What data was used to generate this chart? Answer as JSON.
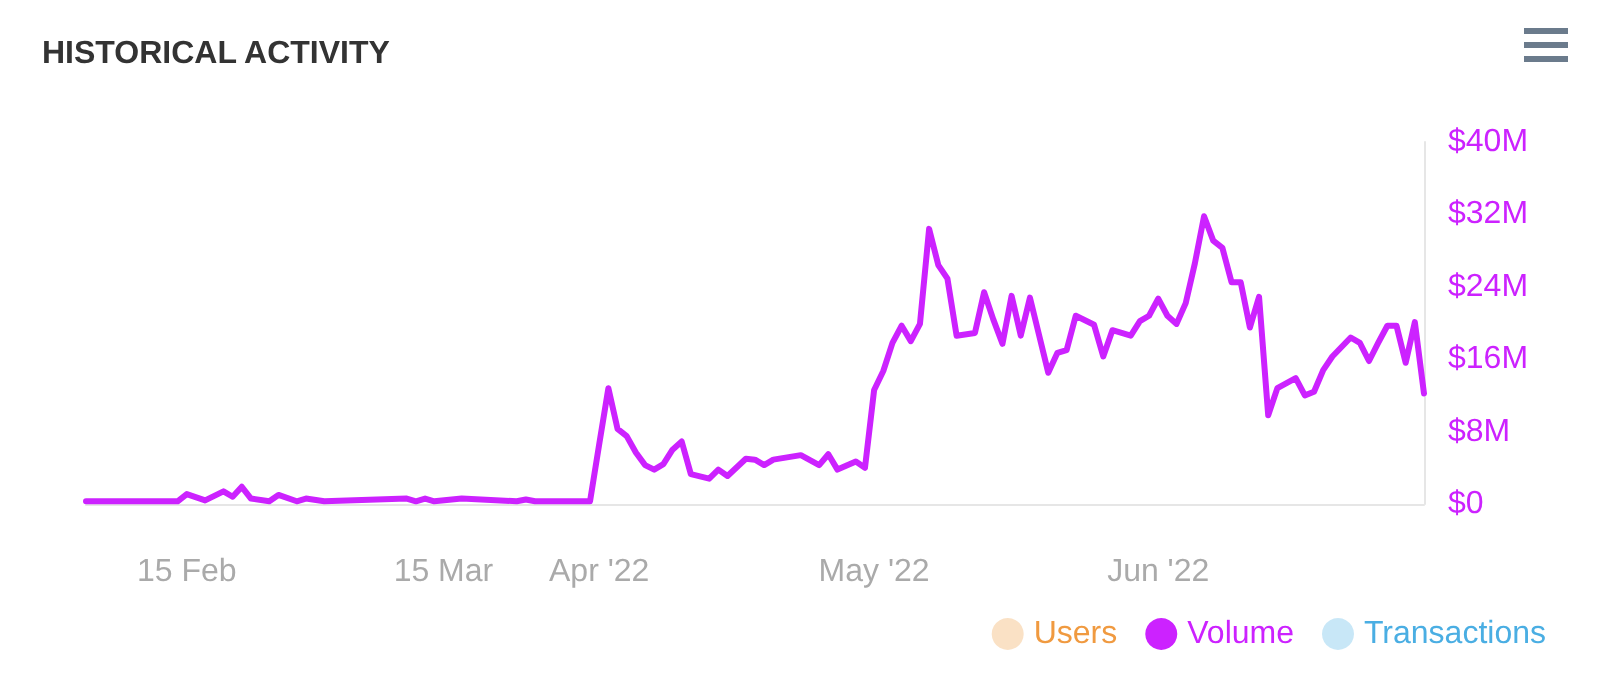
{
  "chart_data": {
    "type": "line",
    "title": "HISTORICAL ACTIVITY",
    "x": [
      "2022-02-04",
      "2022-02-14",
      "2022-02-15",
      "2022-02-17",
      "2022-02-19",
      "2022-02-20",
      "2022-02-21",
      "2022-02-22",
      "2022-02-24",
      "2022-02-25",
      "2022-02-27",
      "2022-02-28",
      "2022-03-02",
      "2022-03-11",
      "2022-03-12",
      "2022-03-13",
      "2022-03-14",
      "2022-03-17",
      "2022-03-23",
      "2022-03-24",
      "2022-03-25",
      "2022-03-31",
      "2022-04-01",
      "2022-04-02",
      "2022-04-03",
      "2022-04-04",
      "2022-04-05",
      "2022-04-06",
      "2022-04-07",
      "2022-04-08",
      "2022-04-09",
      "2022-04-10",
      "2022-04-11",
      "2022-04-13",
      "2022-04-14",
      "2022-04-15",
      "2022-04-17",
      "2022-04-18",
      "2022-04-19",
      "2022-04-20",
      "2022-04-23",
      "2022-04-25",
      "2022-04-26",
      "2022-04-27",
      "2022-04-29",
      "2022-04-30",
      "2022-05-01",
      "2022-05-02",
      "2022-05-03",
      "2022-05-04",
      "2022-05-05",
      "2022-05-06",
      "2022-05-07",
      "2022-05-08",
      "2022-05-09",
      "2022-05-10",
      "2022-05-12",
      "2022-05-13",
      "2022-05-14",
      "2022-05-15",
      "2022-05-16",
      "2022-05-17",
      "2022-05-18",
      "2022-05-20",
      "2022-05-21",
      "2022-05-22",
      "2022-05-23",
      "2022-05-25",
      "2022-05-26",
      "2022-05-27",
      "2022-05-29",
      "2022-05-30",
      "2022-05-31",
      "2022-06-01",
      "2022-06-02",
      "2022-06-03",
      "2022-06-04",
      "2022-06-05",
      "2022-06-06",
      "2022-06-07",
      "2022-06-08",
      "2022-06-09",
      "2022-06-10",
      "2022-06-11",
      "2022-06-12",
      "2022-06-13",
      "2022-06-14",
      "2022-06-16",
      "2022-06-17",
      "2022-06-18",
      "2022-06-19",
      "2022-06-20",
      "2022-06-22",
      "2022-06-23",
      "2022-06-24",
      "2022-06-25",
      "2022-06-26",
      "2022-06-27",
      "2022-06-28",
      "2022-06-29",
      "2022-06-30"
    ],
    "series": [
      {
        "name": "Users",
        "color": "#f09a40",
        "values": [
          null,
          null,
          null,
          null,
          null,
          null,
          null,
          null,
          null,
          null,
          null,
          null,
          null,
          null,
          null,
          null,
          null,
          null,
          null,
          null,
          null,
          null,
          null,
          null,
          null,
          null,
          null,
          null,
          null,
          null,
          null,
          null,
          null,
          null,
          null,
          null,
          null,
          null,
          null,
          null,
          null,
          null,
          null,
          null,
          null,
          null,
          null,
          null,
          null,
          null,
          null,
          null,
          null,
          null,
          null,
          null,
          null,
          null,
          null,
          null,
          null,
          null,
          null,
          null,
          null,
          null,
          null,
          null,
          null,
          null,
          null,
          null,
          null,
          null,
          null,
          null,
          null,
          null,
          null,
          null,
          null,
          null,
          null,
          null,
          null,
          null,
          null,
          null,
          null,
          null,
          null,
          null,
          null,
          null,
          null,
          null,
          null,
          null,
          null,
          null,
          null
        ]
      },
      {
        "name": "Volume",
        "color": "#cc22ff",
        "values": [
          0.3,
          0.3,
          1.1,
          0.4,
          1.4,
          0.8,
          1.9,
          0.6,
          0.3,
          1.0,
          0.3,
          0.6,
          0.3,
          0.6,
          0.3,
          0.6,
          0.3,
          0.6,
          0.3,
          0.5,
          0.3,
          0.3,
          6.6,
          12.8,
          8.3,
          7.5,
          5.7,
          4.3,
          3.8,
          4.4,
          6.0,
          6.9,
          3.3,
          2.8,
          3.8,
          3.1,
          5.0,
          4.9,
          4.3,
          4.9,
          5.4,
          4.3,
          5.5,
          3.8,
          4.7,
          4.0,
          12.6,
          14.7,
          17.8,
          19.7,
          18.0,
          19.9,
          30.4,
          26.4,
          24.9,
          18.6,
          18.9,
          23.4,
          20.4,
          17.7,
          23.0,
          18.6,
          22.8,
          14.5,
          16.7,
          17.0,
          20.8,
          19.8,
          16.3,
          19.2,
          18.6,
          20.2,
          20.8,
          22.7,
          20.8,
          19.9,
          22.2,
          26.6,
          31.8,
          29.1,
          28.3,
          24.5,
          24.5,
          19.5,
          22.9,
          9.8,
          12.8,
          13.9,
          12.0,
          12.4,
          14.8,
          16.3,
          18.4,
          17.8,
          15.8,
          17.8,
          19.7,
          19.7,
          15.6,
          20.1,
          12.2
        ]
      },
      {
        "name": "Transactions",
        "color": "#4aaee3",
        "values": [
          null,
          null,
          null,
          null,
          null,
          null,
          null,
          null,
          null,
          null,
          null,
          null,
          null,
          null,
          null,
          null,
          null,
          null,
          null,
          null,
          null,
          null,
          null,
          null,
          null,
          null,
          null,
          null,
          null,
          null,
          null,
          null,
          null,
          null,
          null,
          null,
          null,
          null,
          null,
          null,
          null,
          null,
          null,
          null,
          null,
          null,
          null,
          null,
          null,
          null,
          null,
          null,
          null,
          null,
          null,
          null,
          null,
          null,
          null,
          null,
          null,
          null,
          null,
          null,
          null,
          null,
          null,
          null,
          null,
          null,
          null,
          null,
          null,
          null,
          null,
          null,
          null,
          null,
          null,
          null,
          null,
          null,
          null,
          null,
          null,
          null,
          null,
          null,
          null,
          null,
          null,
          null,
          null,
          null,
          null,
          null,
          null,
          null,
          null,
          null,
          null
        ]
      }
    ],
    "xlim": [
      "2022-02-04",
      "2022-06-30"
    ],
    "xticks": [
      {
        "value": "2022-02-15",
        "label": "15 Feb"
      },
      {
        "value": "2022-03-15",
        "label": "15 Mar"
      },
      {
        "value": "2022-04-01",
        "label": "Apr '22"
      },
      {
        "value": "2022-05-01",
        "label": "May '22"
      },
      {
        "value": "2022-06-01",
        "label": "Jun '22"
      }
    ],
    "ylim": [
      0,
      40
    ],
    "yticks": [
      {
        "value": 0,
        "label": "$0"
      },
      {
        "value": 8,
        "label": "$8M"
      },
      {
        "value": 16,
        "label": "$16M"
      },
      {
        "value": 24,
        "label": "$24M"
      },
      {
        "value": 32,
        "label": "$32M"
      },
      {
        "value": 40,
        "label": "$40M"
      }
    ],
    "legend": "bottom right",
    "grid": false,
    "marker": "none",
    "line_style": "solid"
  }
}
